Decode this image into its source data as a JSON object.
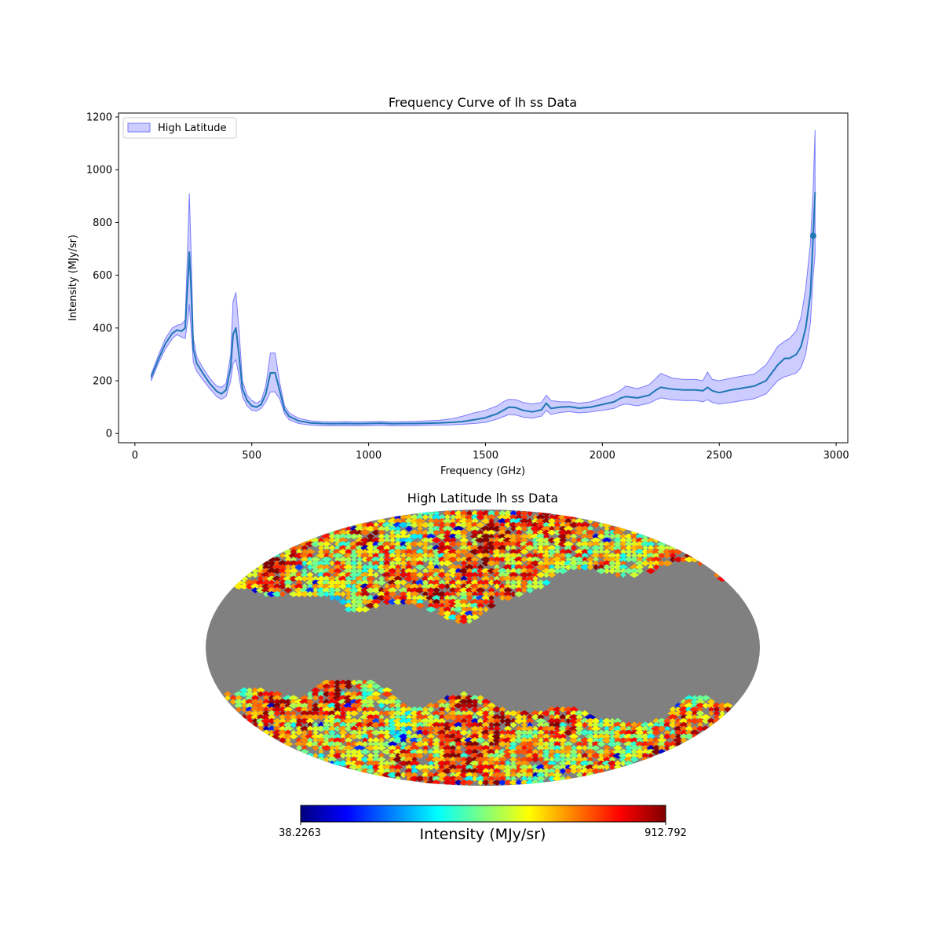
{
  "chart_data": [
    {
      "type": "line",
      "title": "Frequency Curve of lh ss Data",
      "xlabel": "Frequency (GHz)",
      "ylabel": "Intensity (MJy/sr)",
      "xlim": [
        -70,
        3050
      ],
      "ylim": [
        -35,
        1215
      ],
      "xticks": [
        0,
        500,
        1000,
        1500,
        2000,
        2500,
        3000
      ],
      "yticks": [
        0,
        200,
        400,
        600,
        800,
        1000,
        1200
      ],
      "legend": {
        "placement": "upper-left",
        "entries": [
          {
            "label": "High Latitude",
            "kind": "band"
          }
        ]
      },
      "colors": {
        "line": "#1f77b4",
        "band": "#0000ff",
        "band_edge": "#7b7bff"
      },
      "series": [
        {
          "name": "mean",
          "points": [
            [
              70,
              215
            ],
            [
              100,
              280
            ],
            [
              130,
              340
            ],
            [
              160,
              380
            ],
            [
              180,
              392
            ],
            [
              200,
              388
            ],
            [
              215,
              400
            ],
            [
              228,
              600
            ],
            [
              233,
              688
            ],
            [
              240,
              560
            ],
            [
              250,
              320
            ],
            [
              265,
              265
            ],
            [
              290,
              230
            ],
            [
              320,
              190
            ],
            [
              350,
              160
            ],
            [
              370,
              150
            ],
            [
              390,
              165
            ],
            [
              410,
              250
            ],
            [
              420,
              375
            ],
            [
              432,
              400
            ],
            [
              445,
              300
            ],
            [
              460,
              170
            ],
            [
              480,
              125
            ],
            [
              500,
              105
            ],
            [
              520,
              100
            ],
            [
              540,
              110
            ],
            [
              560,
              150
            ],
            [
              580,
              230
            ],
            [
              600,
              230
            ],
            [
              620,
              160
            ],
            [
              640,
              90
            ],
            [
              660,
              65
            ],
            [
              700,
              48
            ],
            [
              750,
              40
            ],
            [
              800,
              38
            ],
            [
              850,
              37
            ],
            [
              900,
              38
            ],
            [
              950,
              37
            ],
            [
              1000,
              38
            ],
            [
              1050,
              39
            ],
            [
              1100,
              37
            ],
            [
              1150,
              38
            ],
            [
              1200,
              38
            ],
            [
              1250,
              39
            ],
            [
              1300,
              40
            ],
            [
              1350,
              42
            ],
            [
              1400,
              45
            ],
            [
              1450,
              52
            ],
            [
              1500,
              60
            ],
            [
              1550,
              75
            ],
            [
              1580,
              90
            ],
            [
              1600,
              100
            ],
            [
              1630,
              98
            ],
            [
              1660,
              88
            ],
            [
              1700,
              82
            ],
            [
              1740,
              90
            ],
            [
              1760,
              115
            ],
            [
              1780,
              95
            ],
            [
              1820,
              100
            ],
            [
              1860,
              102
            ],
            [
              1900,
              96
            ],
            [
              1950,
              100
            ],
            [
              2000,
              110
            ],
            [
              2050,
              120
            ],
            [
              2080,
              135
            ],
            [
              2100,
              140
            ],
            [
              2150,
              135
            ],
            [
              2200,
              145
            ],
            [
              2230,
              165
            ],
            [
              2250,
              175
            ],
            [
              2300,
              168
            ],
            [
              2350,
              165
            ],
            [
              2400,
              165
            ],
            [
              2430,
              162
            ],
            [
              2450,
              175
            ],
            [
              2470,
              162
            ],
            [
              2500,
              155
            ],
            [
              2550,
              165
            ],
            [
              2600,
              172
            ],
            [
              2650,
              180
            ],
            [
              2700,
              200
            ],
            [
              2750,
              260
            ],
            [
              2780,
              285
            ],
            [
              2800,
              285
            ],
            [
              2830,
              300
            ],
            [
              2850,
              330
            ],
            [
              2870,
              400
            ],
            [
              2890,
              530
            ],
            [
              2902,
              750
            ],
            [
              2910,
              915
            ]
          ]
        },
        {
          "name": "upper",
          "points": [
            [
              70,
              225
            ],
            [
              100,
              295
            ],
            [
              130,
              360
            ],
            [
              160,
              400
            ],
            [
              180,
              410
            ],
            [
              200,
              415
            ],
            [
              215,
              430
            ],
            [
              228,
              760
            ],
            [
              233,
              910
            ],
            [
              240,
              700
            ],
            [
              250,
              360
            ],
            [
              265,
              290
            ],
            [
              290,
              250
            ],
            [
              320,
              210
            ],
            [
              350,
              180
            ],
            [
              370,
              175
            ],
            [
              390,
              190
            ],
            [
              410,
              300
            ],
            [
              420,
              500
            ],
            [
              432,
              535
            ],
            [
              445,
              400
            ],
            [
              460,
              200
            ],
            [
              480,
              145
            ],
            [
              500,
              125
            ],
            [
              520,
              115
            ],
            [
              540,
              125
            ],
            [
              560,
              180
            ],
            [
              580,
              305
            ],
            [
              600,
              305
            ],
            [
              620,
              190
            ],
            [
              640,
              105
            ],
            [
              660,
              78
            ],
            [
              700,
              58
            ],
            [
              750,
              48
            ],
            [
              800,
              45
            ],
            [
              850,
              44
            ],
            [
              900,
              45
            ],
            [
              950,
              44
            ],
            [
              1000,
              45
            ],
            [
              1050,
              46
            ],
            [
              1100,
              44
            ],
            [
              1150,
              45
            ],
            [
              1200,
              46
            ],
            [
              1250,
              48
            ],
            [
              1300,
              50
            ],
            [
              1350,
              55
            ],
            [
              1400,
              65
            ],
            [
              1450,
              78
            ],
            [
              1500,
              88
            ],
            [
              1550,
              105
            ],
            [
              1580,
              122
            ],
            [
              1600,
              130
            ],
            [
              1630,
              128
            ],
            [
              1660,
              118
            ],
            [
              1700,
              112
            ],
            [
              1740,
              118
            ],
            [
              1760,
              145
            ],
            [
              1780,
              125
            ],
            [
              1820,
              120
            ],
            [
              1860,
              120
            ],
            [
              1900,
              115
            ],
            [
              1950,
              120
            ],
            [
              2000,
              135
            ],
            [
              2050,
              150
            ],
            [
              2080,
              165
            ],
            [
              2100,
              180
            ],
            [
              2150,
              170
            ],
            [
              2200,
              185
            ],
            [
              2230,
              210
            ],
            [
              2250,
              228
            ],
            [
              2300,
              210
            ],
            [
              2350,
              205
            ],
            [
              2400,
              205
            ],
            [
              2430,
              200
            ],
            [
              2450,
              233
            ],
            [
              2470,
              205
            ],
            [
              2500,
              200
            ],
            [
              2550,
              210
            ],
            [
              2600,
              218
            ],
            [
              2650,
              225
            ],
            [
              2700,
              260
            ],
            [
              2750,
              330
            ],
            [
              2780,
              350
            ],
            [
              2800,
              360
            ],
            [
              2830,
              390
            ],
            [
              2850,
              440
            ],
            [
              2870,
              550
            ],
            [
              2890,
              720
            ],
            [
              2902,
              930
            ],
            [
              2910,
              1150
            ]
          ]
        },
        {
          "name": "lower",
          "points": [
            [
              70,
              200
            ],
            [
              100,
              265
            ],
            [
              130,
              320
            ],
            [
              160,
              360
            ],
            [
              180,
              375
            ],
            [
              200,
              365
            ],
            [
              215,
              360
            ],
            [
              228,
              440
            ],
            [
              233,
              490
            ],
            [
              240,
              400
            ],
            [
              250,
              270
            ],
            [
              265,
              235
            ],
            [
              290,
              205
            ],
            [
              320,
              170
            ],
            [
              350,
              140
            ],
            [
              370,
              130
            ],
            [
              390,
              140
            ],
            [
              410,
              200
            ],
            [
              420,
              265
            ],
            [
              432,
              280
            ],
            [
              445,
              220
            ],
            [
              460,
              140
            ],
            [
              480,
              105
            ],
            [
              500,
              88
            ],
            [
              520,
              85
            ],
            [
              540,
              95
            ],
            [
              560,
              120
            ],
            [
              580,
              158
            ],
            [
              600,
              158
            ],
            [
              620,
              130
            ],
            [
              640,
              75
            ],
            [
              660,
              52
            ],
            [
              700,
              38
            ],
            [
              750,
              32
            ],
            [
              800,
              30
            ],
            [
              850,
              29
            ],
            [
              900,
              30
            ],
            [
              950,
              29
            ],
            [
              1000,
              30
            ],
            [
              1050,
              31
            ],
            [
              1100,
              29
            ],
            [
              1150,
              30
            ],
            [
              1200,
              30
            ],
            [
              1250,
              31
            ],
            [
              1300,
              32
            ],
            [
              1350,
              33
            ],
            [
              1400,
              35
            ],
            [
              1450,
              38
            ],
            [
              1500,
              42
            ],
            [
              1550,
              55
            ],
            [
              1580,
              65
            ],
            [
              1600,
              72
            ],
            [
              1630,
              70
            ],
            [
              1660,
              62
            ],
            [
              1700,
              58
            ],
            [
              1740,
              66
            ],
            [
              1760,
              88
            ],
            [
              1780,
              72
            ],
            [
              1820,
              80
            ],
            [
              1860,
              83
            ],
            [
              1900,
              78
            ],
            [
              1950,
              82
            ],
            [
              2000,
              88
            ],
            [
              2050,
              95
            ],
            [
              2080,
              108
            ],
            [
              2100,
              112
            ],
            [
              2150,
              105
            ],
            [
              2200,
              115
            ],
            [
              2230,
              128
            ],
            [
              2250,
              135
            ],
            [
              2300,
              128
            ],
            [
              2350,
              125
            ],
            [
              2400,
              125
            ],
            [
              2430,
              120
            ],
            [
              2450,
              128
            ],
            [
              2470,
              118
            ],
            [
              2500,
              112
            ],
            [
              2550,
              118
            ],
            [
              2600,
              125
            ],
            [
              2650,
              132
            ],
            [
              2700,
              150
            ],
            [
              2750,
              200
            ],
            [
              2780,
              215
            ],
            [
              2800,
              220
            ],
            [
              2830,
              230
            ],
            [
              2850,
              250
            ],
            [
              2870,
              300
            ],
            [
              2890,
              420
            ],
            [
              2902,
              600
            ],
            [
              2910,
              680
            ]
          ]
        },
        {
          "name": "highlight",
          "kind": "marker",
          "points": [
            [
              2902,
              750
            ]
          ]
        }
      ]
    },
    {
      "type": "heatmap",
      "projection": "mollweide",
      "title": "High Latitude lh ss Data",
      "masked_band": "galactic plane (|b| < ~30°) shown as gray",
      "mask_color": "#808080",
      "colorbar": {
        "label": "Intensity (MJy/sr)",
        "min": 38.2263,
        "max": 912.792,
        "min_label": "38.2263",
        "max_label": "912.792",
        "colormap": [
          "#00007f",
          "#0000ff",
          "#007fff",
          "#00ffff",
          "#7fff7f",
          "#ffff00",
          "#ff7f00",
          "#ff0000",
          "#7f0000"
        ]
      }
    }
  ]
}
